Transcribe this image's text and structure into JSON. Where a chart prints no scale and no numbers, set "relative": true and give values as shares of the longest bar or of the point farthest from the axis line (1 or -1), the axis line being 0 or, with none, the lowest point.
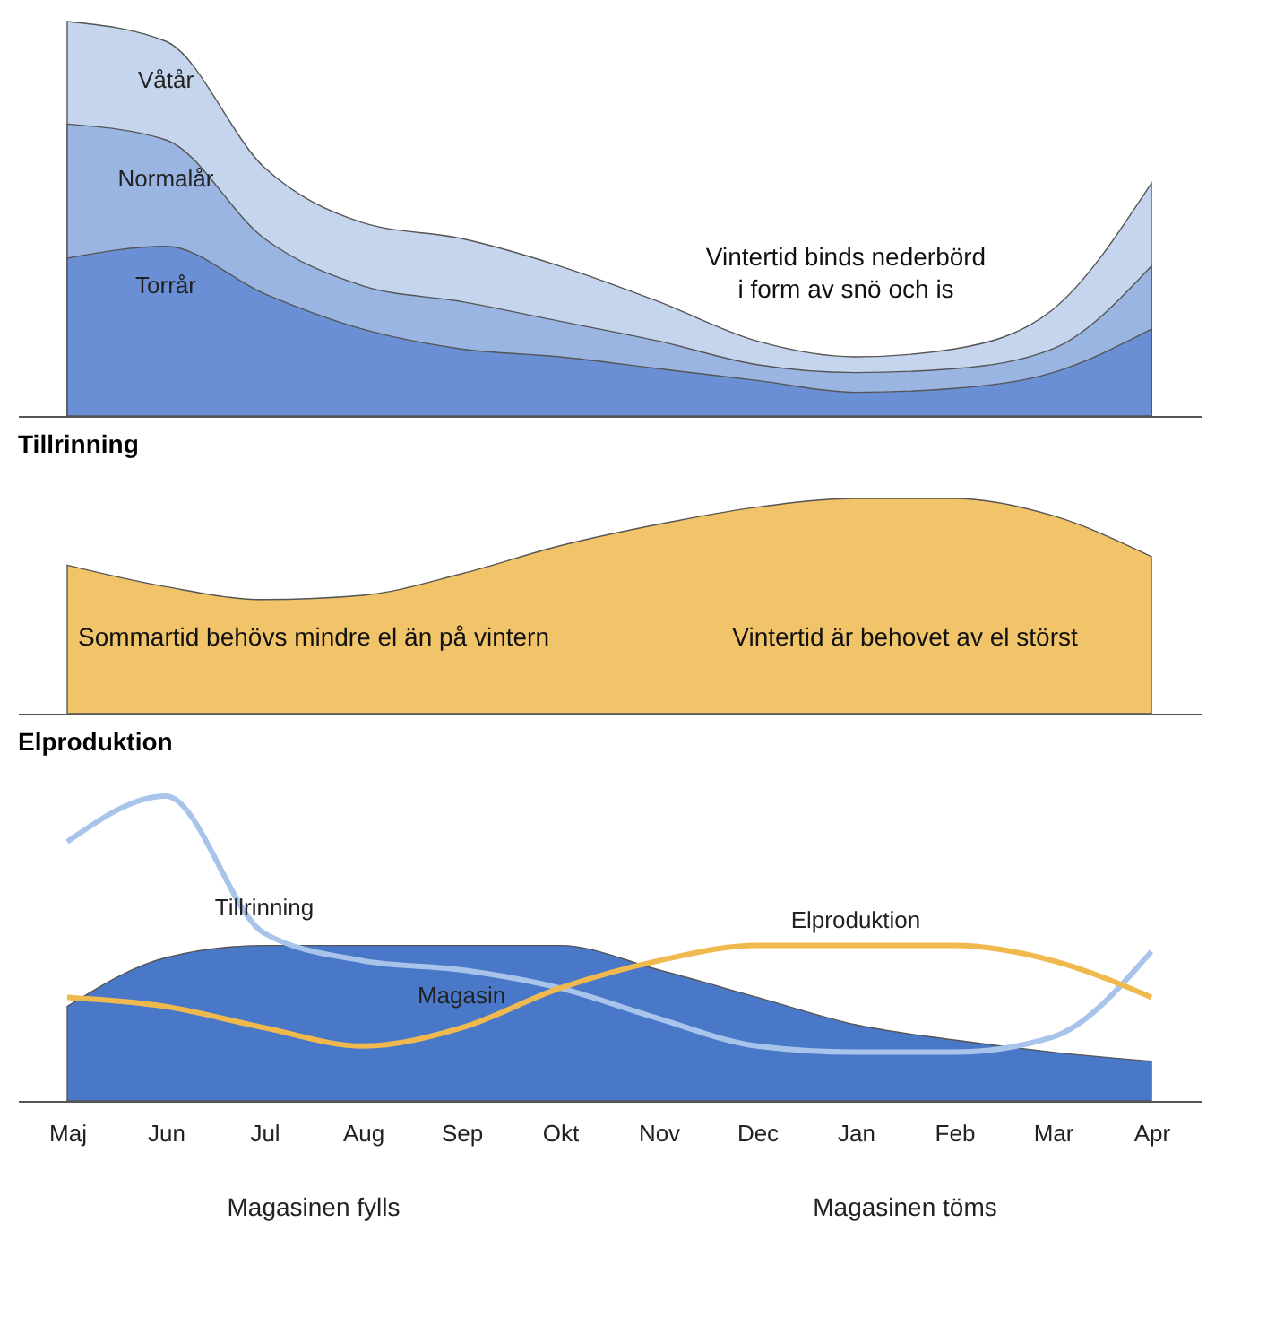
{
  "chart_data": [
    {
      "type": "area",
      "title": "Tillrinning",
      "relative": true,
      "tick_labels": false,
      "categories": [
        null,
        null,
        null,
        null,
        null,
        null,
        null,
        null,
        null,
        null,
        null,
        null
      ],
      "annotations": [
        "Vintertid binds nederbörd i form av snö och is"
      ],
      "series": [
        {
          "name": "Våtår",
          "color": "#c5d5ee",
          "values": [
            1,
            0.95,
            0.63,
            0.49,
            0.45,
            0.38,
            0.29,
            0.19,
            0.15,
            0.17,
            0.27,
            0.59
          ]
        },
        {
          "name": "Normalår",
          "color": "#9bb5e2",
          "values": [
            0.74,
            0.7,
            0.45,
            0.33,
            0.29,
            0.24,
            0.19,
            0.13,
            0.11,
            0.12,
            0.17,
            0.38
          ]
        },
        {
          "name": "Torrår",
          "color": "#6a8fd4",
          "values": [
            0.4,
            0.43,
            0.31,
            0.22,
            0.17,
            0.15,
            0.12,
            0.09,
            0.06,
            0.07,
            0.11,
            0.22
          ]
        }
      ]
    },
    {
      "type": "area",
      "title": "Elproduktion",
      "relative": true,
      "tick_labels": false,
      "categories": [
        null,
        null,
        null,
        null,
        null,
        null,
        null,
        null,
        null,
        null,
        null,
        null
      ],
      "annotations": [
        "Sommartid behövs mindre el än på vintern",
        "Vintertid är behovet av el störst"
      ],
      "series": [
        {
          "color": "#f1c46a",
          "values": [
            0.69,
            0.59,
            0.53,
            0.55,
            0.65,
            0.78,
            0.88,
            0.96,
            1,
            1,
            0.92,
            0.73
          ]
        }
      ]
    },
    {
      "type": "area",
      "relative": true,
      "tick_labels": "x",
      "categories": [
        "Maj",
        "Jun",
        "Jul",
        "Aug",
        "Sep",
        "Okt",
        "Nov",
        "Dec",
        "Jan",
        "Feb",
        "Mar",
        "Apr"
      ],
      "annotations": [
        "Magasinen fylls",
        "Magasinen töms"
      ],
      "series": [
        {
          "name": "Magasin",
          "type": "area",
          "color": "#4a78c8",
          "values": [
            0.31,
            0.47,
            0.51,
            0.51,
            0.51,
            0.51,
            0.43,
            0.34,
            0.25,
            0.2,
            0.16,
            0.13
          ]
        },
        {
          "name": "Tillrinning",
          "type": "line",
          "color": "#a9c4ea",
          "values": [
            0.85,
            1,
            0.55,
            0.46,
            0.43,
            0.37,
            0.27,
            0.18,
            0.16,
            0.16,
            0.21,
            0.49
          ]
        },
        {
          "name": "Elproduktion",
          "type": "line",
          "color": "#f0b94e",
          "values": [
            0.34,
            0.31,
            0.24,
            0.18,
            0.24,
            0.37,
            0.46,
            0.51,
            0.51,
            0.51,
            0.46,
            0.34
          ]
        }
      ]
    }
  ]
}
